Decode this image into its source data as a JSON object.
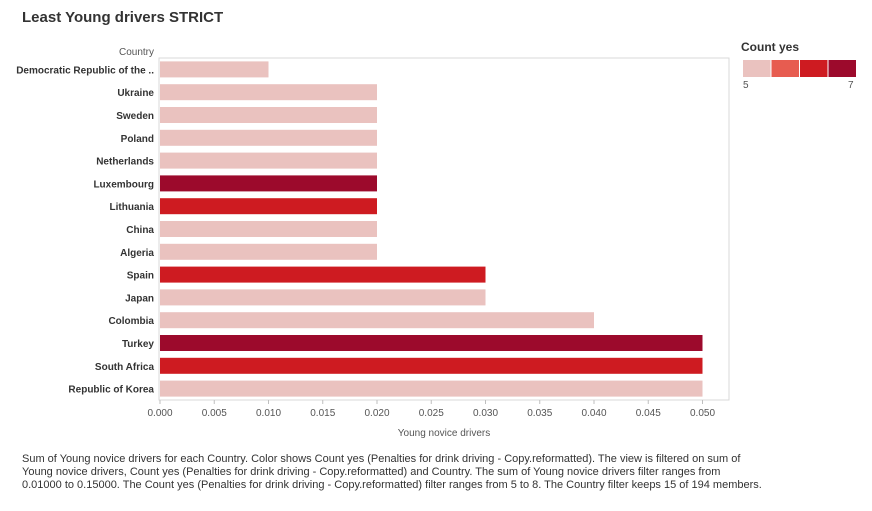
{
  "title": "Least Young drivers STRICT",
  "caption": "Sum of Young novice drivers for each Country.  Color shows Count yes (Penalties for drink driving - Copy.reformatted). The view is filtered on sum of Young novice drivers, Count yes (Penalties for drink driving - Copy.reformatted) and Country. The sum of Young novice drivers filter ranges from 0.01000 to 0.15000. The Count yes (Penalties for drink driving - Copy.reformatted) filter ranges from 5 to 8. The Country filter keeps 15 of 194 members.",
  "legend": {
    "title": "Count yes",
    "min_label": "5",
    "max_label": "7",
    "colors": [
      "#eac2bf",
      "#e75c50",
      "#ce1b21",
      "#9c0a2c"
    ]
  },
  "chart_data": {
    "type": "bar",
    "orientation": "horizontal",
    "row_header": "Country",
    "xlabel": "Young novice drivers",
    "xlim": [
      0,
      0.052
    ],
    "xticks": [
      "0.000",
      "0.005",
      "0.010",
      "0.015",
      "0.020",
      "0.025",
      "0.030",
      "0.035",
      "0.040",
      "0.045",
      "0.050"
    ],
    "grid": false,
    "categories": [
      "Democratic Republic of the ..",
      "Ukraine",
      "Sweden",
      "Poland",
      "Netherlands",
      "Luxembourg",
      "Lithuania",
      "China",
      "Algeria",
      "Spain",
      "Japan",
      "Colombia",
      "Turkey",
      "South Africa",
      "Republic of Korea"
    ],
    "values": [
      0.01,
      0.02,
      0.02,
      0.02,
      0.02,
      0.02,
      0.02,
      0.02,
      0.02,
      0.03,
      0.03,
      0.04,
      0.05,
      0.05,
      0.05
    ],
    "colors": [
      "#eac2bf",
      "#eac2bf",
      "#eac2bf",
      "#eac2bf",
      "#eac2bf",
      "#9c0a2c",
      "#ce1b21",
      "#eac2bf",
      "#eac2bf",
      "#ce1b21",
      "#eac2bf",
      "#eac2bf",
      "#9c0a2c",
      "#ce1b21",
      "#eac2bf"
    ]
  }
}
